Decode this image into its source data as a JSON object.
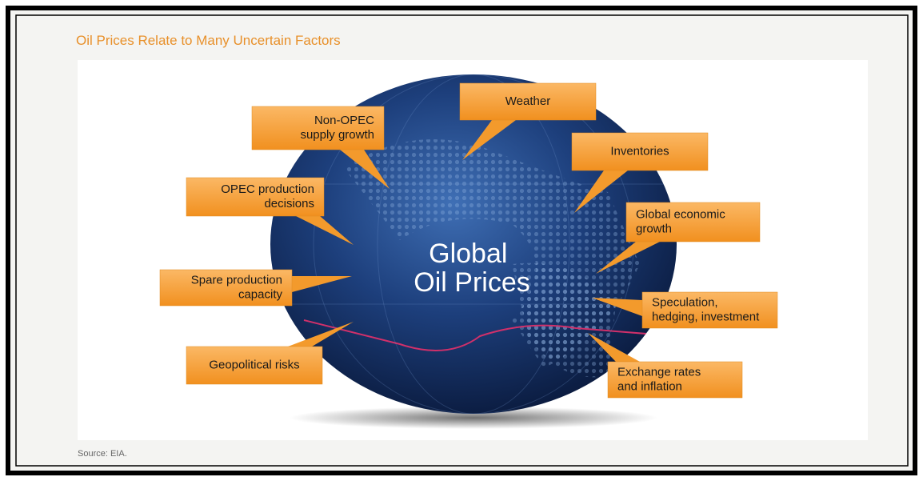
{
  "title": "Oil Prices Relate to Many Uncertain Factors",
  "center": {
    "lines": [
      "Global",
      "Oil Prices"
    ]
  },
  "factors": [
    {
      "lines": [
        "Non-OPEC",
        "supply growth"
      ]
    },
    {
      "lines": [
        "Weather"
      ]
    },
    {
      "lines": [
        "Inventories"
      ]
    },
    {
      "lines": [
        "OPEC production",
        "decisions"
      ]
    },
    {
      "lines": [
        "Global economic",
        "growth"
      ]
    },
    {
      "lines": [
        "Spare production",
        "capacity"
      ]
    },
    {
      "lines": [
        "Speculation,",
        "hedging, investment"
      ]
    },
    {
      "lines": [
        "Geopolitical risks"
      ]
    },
    {
      "lines": [
        "Exchange rates",
        "and inflation"
      ]
    }
  ],
  "source": "Source: EIA."
}
